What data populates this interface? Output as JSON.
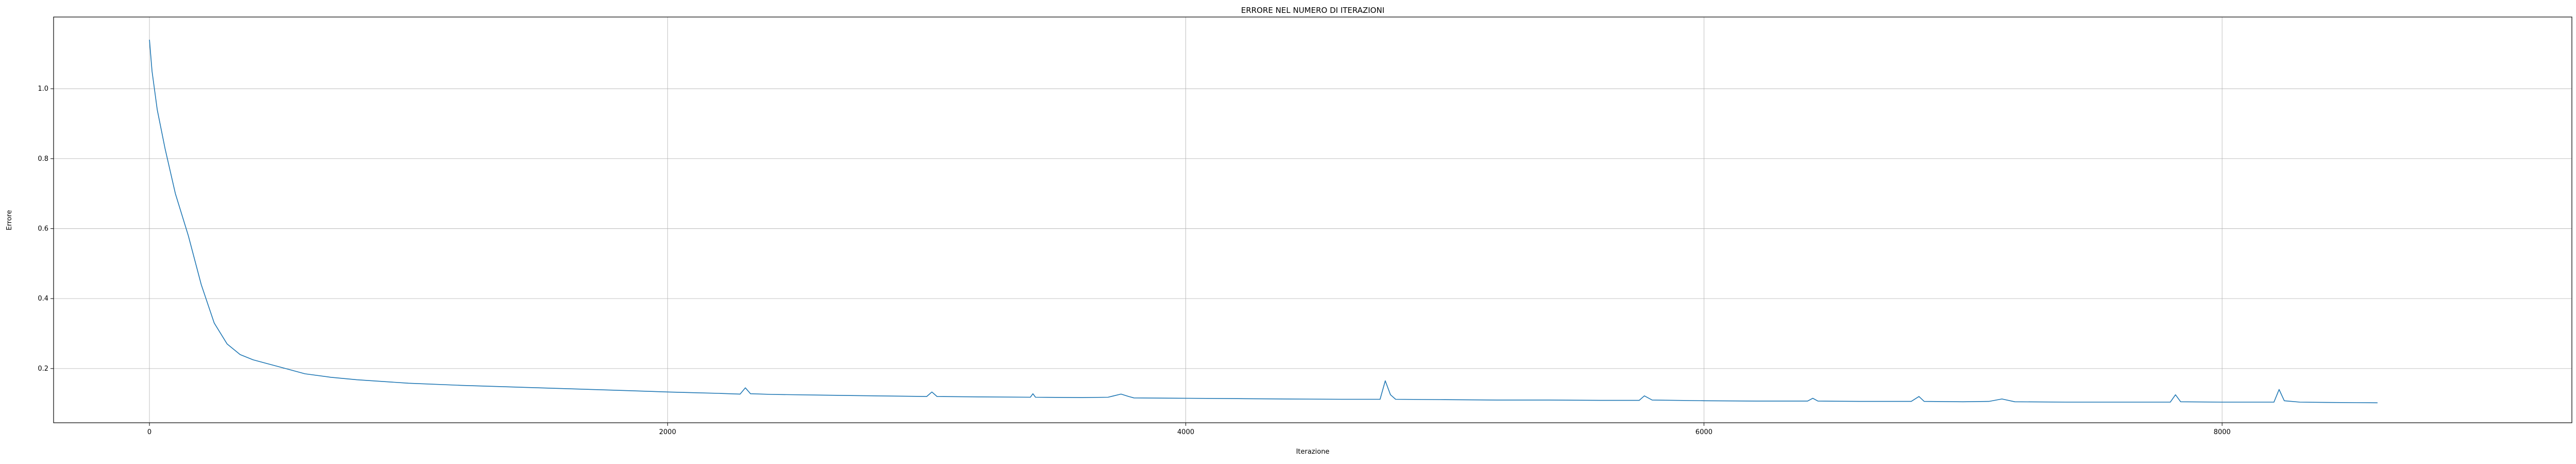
{
  "chart_data": {
    "type": "line",
    "title": "ERRORE NEL NUMERO DI ITERAZIONI",
    "xlabel": "Iterazione",
    "ylabel": "Errore",
    "xlim": [
      -370,
      9350
    ],
    "ylim": [
      0.045,
      1.205
    ],
    "xticks": [
      0,
      2000,
      4000,
      6000,
      8000
    ],
    "yticks": [
      0.2,
      0.4,
      0.6,
      0.8,
      1.0
    ],
    "grid": true,
    "legend": "none",
    "colors": {
      "line": "#1f77b4",
      "grid": "#b0b0b0",
      "axes": "#000000"
    },
    "series": [
      {
        "x": [
          0,
          10,
          30,
          60,
          100,
          150,
          200,
          250,
          300,
          350,
          400,
          500,
          600,
          700,
          800,
          1000,
          1200,
          1500,
          1800,
          2000,
          2100,
          2200,
          2280,
          2300,
          2320,
          2400,
          2600,
          2800,
          3000,
          3020,
          3040,
          3200,
          3400,
          3410,
          3420,
          3600,
          3700,
          3750,
          3780,
          3800,
          4000,
          4200,
          4400,
          4600,
          4750,
          4770,
          4790,
          4810,
          5000,
          5200,
          5400,
          5600,
          5750,
          5770,
          5800,
          6000,
          6200,
          6400,
          6420,
          6440,
          6600,
          6800,
          6830,
          6850,
          7000,
          7100,
          7150,
          7200,
          7400,
          7600,
          7800,
          7820,
          7840,
          8000,
          8100,
          8200,
          8220,
          8240,
          8300,
          8400,
          8600
        ],
        "y": [
          1.14,
          1.05,
          0.94,
          0.83,
          0.7,
          0.58,
          0.44,
          0.33,
          0.27,
          0.24,
          0.225,
          0.205,
          0.185,
          0.175,
          0.168,
          0.158,
          0.152,
          0.145,
          0.138,
          0.133,
          0.131,
          0.129,
          0.127,
          0.145,
          0.128,
          0.126,
          0.124,
          0.122,
          0.12,
          0.133,
          0.12,
          0.119,
          0.118,
          0.128,
          0.118,
          0.117,
          0.118,
          0.127,
          0.12,
          0.116,
          0.115,
          0.114,
          0.113,
          0.112,
          0.112,
          0.165,
          0.125,
          0.112,
          0.111,
          0.11,
          0.11,
          0.109,
          0.109,
          0.122,
          0.11,
          0.108,
          0.107,
          0.107,
          0.115,
          0.107,
          0.106,
          0.106,
          0.12,
          0.106,
          0.105,
          0.106,
          0.113,
          0.105,
          0.104,
          0.104,
          0.104,
          0.125,
          0.105,
          0.104,
          0.104,
          0.104,
          0.14,
          0.108,
          0.104,
          0.103,
          0.102
        ]
      }
    ]
  }
}
